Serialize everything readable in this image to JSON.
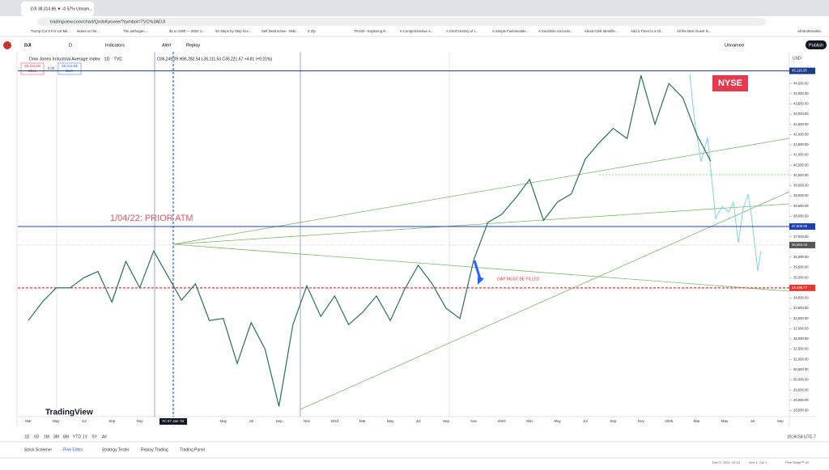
{
  "browser": {
    "tab_title": "DJI 38,314.86 ▼ -0.57% Unnam...",
    "url": "tradingview.com/chart/QxdsKpoxee/?symbol=TVC%3ADJI",
    "bookmarks": [
      "Trump Cut It For US Mil...",
      "Notes on the...",
      "The pathogen...",
      "$1 to 1000 — 2023 J...",
      "10 Steps by Step Gui...",
      "Self Destructive - Wiki...",
      "Z Zip",
      "78-340 - Exploring R...",
      "A Comprehensive A...",
      "A Short History of t...",
      "A Simple Fashionable...",
      "A Sunshine Success...",
      "About CDS Identifie...",
      "Add a Timer to a Gl...",
      "All the Best Guest fo..."
    ],
    "all_bookmarks": "All Bookmarks"
  },
  "toolbar": {
    "symbol": "DJI",
    "interval": "D",
    "indicators": "Indicators",
    "alert": "Alert",
    "replay": "Replay",
    "layout": "Unnamed",
    "publish": "Publish"
  },
  "chart_data": {
    "type": "line",
    "title": "Dow Jones Industrial Average Index · 1D · TVC",
    "ohlc": "O36,249.09 H36,282.54 L36,111.53 C36,221.67 +4.81 (+0.01%)",
    "sell_price": "38,314.86",
    "sell": "SELL",
    "spread": "0.00",
    "buy_price": "38,314.86",
    "buy": "BUY",
    "currency": "USD",
    "watermark": "TradingView",
    "annotations": [
      "1/04/22: PRIOR ATM",
      "GAP MUST BE FILLED",
      "NYSE"
    ],
    "x": [
      "2021-03",
      "2021-04",
      "2021-05",
      "2021-06",
      "2021-07",
      "2021-08",
      "2021-09",
      "2021-10",
      "2021-11",
      "2021-12",
      "2022-01",
      "2022-02",
      "2022-03",
      "2022-04",
      "2022-05",
      "2022-06",
      "2022-07",
      "2022-08",
      "2022-09",
      "2022-10",
      "2022-11",
      "2022-12",
      "2023-01",
      "2023-02",
      "2023-03",
      "2023-04",
      "2023-05",
      "2023-06",
      "2023-07",
      "2023-08",
      "2023-09",
      "2023-10",
      "2023-11",
      "2023-12",
      "2024-01",
      "2024-02",
      "2024-03",
      "2024-04",
      "2024-05",
      "2024-06",
      "2024-07",
      "2024-08",
      "2024-09",
      "2024-10",
      "2024-11",
      "2024-12",
      "2025-01",
      "2025-02",
      "2025-03",
      "2025-04"
    ],
    "values": [
      32900,
      33800,
      34500,
      34500,
      35000,
      35300,
      33800,
      35800,
      34500,
      36300,
      35100,
      33900,
      34700,
      32900,
      33000,
      30800,
      32800,
      31500,
      28700,
      32700,
      34600,
      33100,
      34100,
      32700,
      33300,
      34100,
      32900,
      34400,
      35600,
      34700,
      33500,
      33000,
      35900,
      37700,
      38100,
      38900,
      39800,
      37800,
      38700,
      39100,
      40800,
      41600,
      42300,
      41800,
      44900,
      42500,
      44500,
      43800,
      42000,
      40700
    ],
    "color": "#2a6f5e",
    "ylim": [
      28200,
      46050
    ],
    "yticks": [
      {
        "value": 28500,
        "label": "28,500.00"
      },
      {
        "value": 29000,
        "label": "29,000.00"
      },
      {
        "value": 29500,
        "label": "29,500.00"
      },
      {
        "value": 30000,
        "label": "30,000.00"
      },
      {
        "value": 30500,
        "label": "30,500.00"
      },
      {
        "value": 31000,
        "label": "31,000.00"
      },
      {
        "value": 31500,
        "label": "31,500.00"
      },
      {
        "value": 32000,
        "label": "32,000.00"
      },
      {
        "value": 32500,
        "label": "32,500.00"
      },
      {
        "value": 33000,
        "label": "33,000.00"
      },
      {
        "value": 33500,
        "label": "33,500.00"
      },
      {
        "value": 34000,
        "label": "34,000.00"
      },
      {
        "value": 34500,
        "label": "34,500.00"
      },
      {
        "value": 35000,
        "label": "35,000.00"
      },
      {
        "value": 35500,
        "label": "35,500.00"
      },
      {
        "value": 36000,
        "label": "36,000.00"
      },
      {
        "value": 36500,
        "label": "36,500.00"
      },
      {
        "value": 37000,
        "label": "37,000.00"
      },
      {
        "value": 37500,
        "label": "37,500.00"
      },
      {
        "value": 38000,
        "label": "38,000.00"
      },
      {
        "value": 38500,
        "label": "38,500.00"
      },
      {
        "value": 39000,
        "label": "39,000.00"
      },
      {
        "value": 39500,
        "label": "39,500.00"
      },
      {
        "value": 40000,
        "label": "40,000.00"
      },
      {
        "value": 40500,
        "label": "40,500.00"
      },
      {
        "value": 41000,
        "label": "41,000.00"
      },
      {
        "value": 41500,
        "label": "41,500.00"
      },
      {
        "value": 42000,
        "label": "42,000.00"
      },
      {
        "value": 42500,
        "label": "42,500.00"
      },
      {
        "value": 43000,
        "label": "43,000.00"
      },
      {
        "value": 43500,
        "label": "43,500.00"
      },
      {
        "value": 44000,
        "label": "44,000.00"
      },
      {
        "value": 44500,
        "label": "44,500.00"
      }
    ],
    "price_labels": [
      {
        "value": 45116.05,
        "label": "45,116.05",
        "color": "#1e3a8a"
      },
      {
        "value": 37500,
        "label": "37,500.00",
        "color": "#1e40af"
      },
      {
        "value": 36593.43,
        "label": "36,593.43",
        "color": "#555555"
      },
      {
        "value": 34498.77,
        "label": "34,498.77",
        "color": "#e53935"
      }
    ],
    "xaxis_labels": [
      "Mar",
      "May",
      "Jul",
      "Sep",
      "Nov",
      "Fri 07 Jan '22",
      "May",
      "Jul",
      "Sep",
      "Nov",
      "2023",
      "Mar",
      "May",
      "Jul",
      "Sep",
      "Nov",
      "2024",
      "Mar",
      "May",
      "Jul",
      "Sep",
      "Nov",
      "2025",
      "Mar",
      "May",
      "Jul",
      "Sep"
    ],
    "ranges": [
      "1D",
      "5D",
      "1M",
      "3M",
      "6M",
      "YTD",
      "1Y",
      "5Y",
      "All"
    ],
    "clock": "16:36:54 UTC-7"
  },
  "bottom_tabs": [
    "Stock Screener",
    "Pine Editor",
    "Strategy Tester",
    "Replay Trading",
    "Trading Panel"
  ],
  "status": [
    "Dec 9, 2024, 12:24",
    "Line 1, Col 1",
    "Pine Script™ v5"
  ]
}
